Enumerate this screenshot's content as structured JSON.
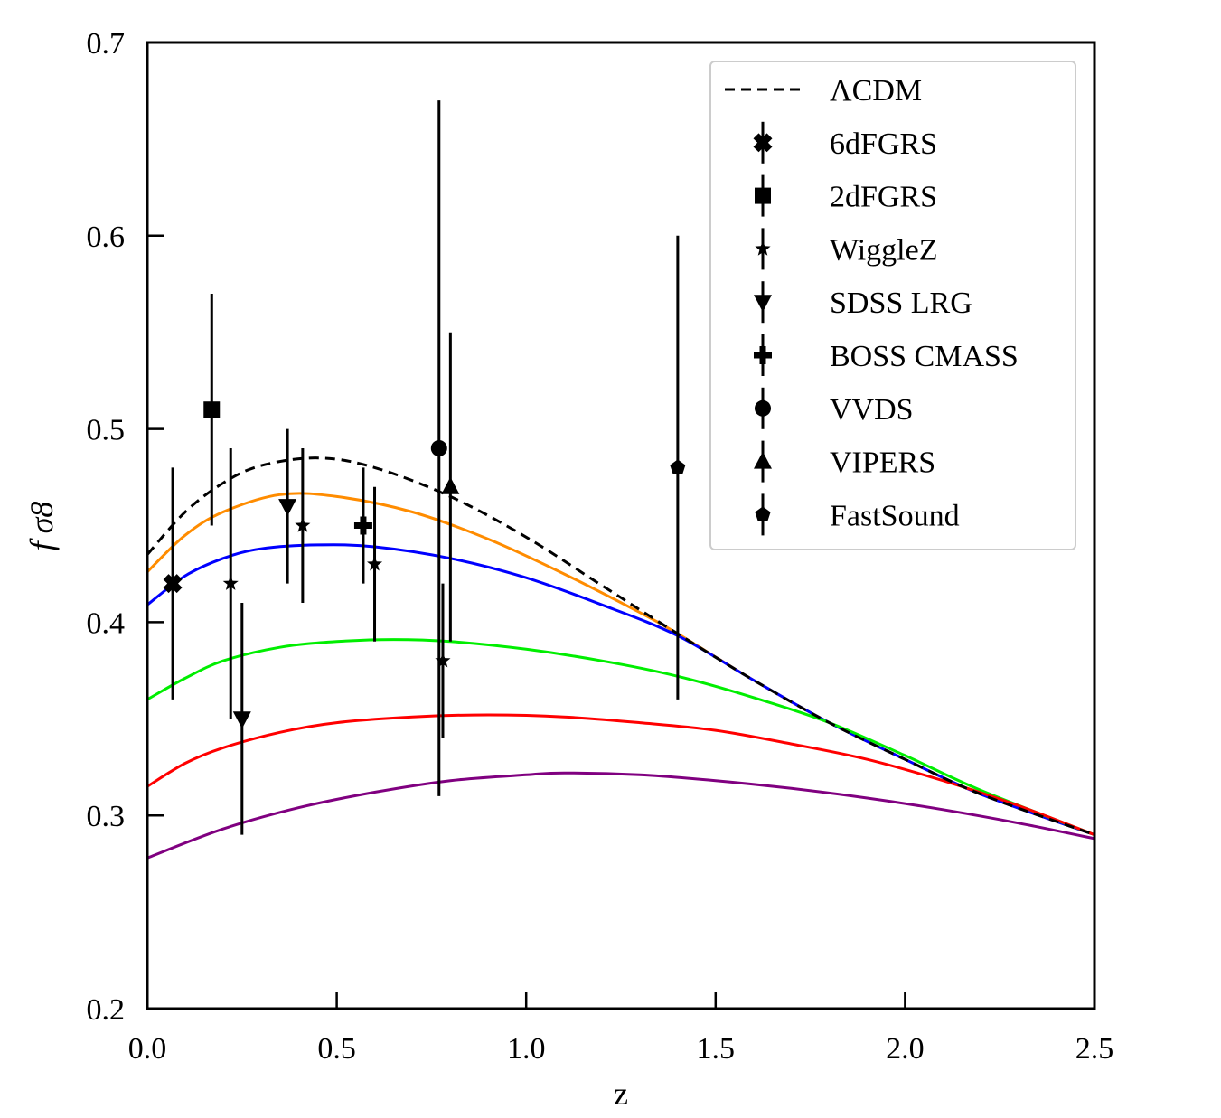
{
  "chart_data": {
    "type": "line",
    "xlabel": "z",
    "ylabel": "f σ8",
    "xlim": [
      0.0,
      2.5
    ],
    "ylim": [
      0.2,
      0.7
    ],
    "grid": false,
    "legend_position": "top-right",
    "xticks": [
      "0.0",
      "0.5",
      "1.0",
      "1.5",
      "2.0",
      "2.5"
    ],
    "yticks": [
      "0.2",
      "0.3",
      "0.4",
      "0.5",
      "0.6",
      "0.7"
    ],
    "model_series": [
      {
        "name": "ΛCDM",
        "color": "#000000",
        "dashed": true,
        "x": [
          0.0,
          0.1,
          0.2,
          0.3,
          0.45,
          0.6,
          0.8,
          1.0,
          1.2,
          1.4,
          1.6,
          1.8,
          2.0,
          2.2,
          2.5
        ],
        "y": [
          0.435,
          0.457,
          0.472,
          0.481,
          0.485,
          0.48,
          0.465,
          0.444,
          0.419,
          0.394,
          0.37,
          0.348,
          0.329,
          0.311,
          0.29
        ]
      },
      {
        "color": "#ff8c00",
        "dashed": false,
        "x": [
          0.0,
          0.1,
          0.2,
          0.35,
          0.5,
          0.7,
          0.9,
          1.1,
          1.3,
          1.4,
          1.6,
          1.8,
          2.0,
          2.2,
          2.5
        ],
        "y": [
          0.426,
          0.445,
          0.457,
          0.466,
          0.465,
          0.457,
          0.443,
          0.425,
          0.405,
          0.394,
          0.37,
          0.348,
          0.329,
          0.311,
          0.29
        ]
      },
      {
        "color": "#0000ff",
        "dashed": false,
        "x": [
          0.0,
          0.1,
          0.2,
          0.3,
          0.45,
          0.6,
          0.8,
          1.0,
          1.2,
          1.4,
          1.6,
          1.8,
          2.0,
          2.2,
          2.5
        ],
        "y": [
          0.409,
          0.424,
          0.433,
          0.438,
          0.44,
          0.439,
          0.433,
          0.423,
          0.409,
          0.393,
          0.37,
          0.348,
          0.329,
          0.311,
          0.29
        ]
      },
      {
        "color": "#00ee00",
        "dashed": false,
        "x": [
          0.0,
          0.1,
          0.2,
          0.35,
          0.5,
          0.65,
          0.8,
          1.0,
          1.2,
          1.4,
          1.6,
          1.8,
          2.0,
          2.2,
          2.5
        ],
        "y": [
          0.36,
          0.371,
          0.38,
          0.387,
          0.39,
          0.391,
          0.39,
          0.386,
          0.38,
          0.372,
          0.361,
          0.348,
          0.331,
          0.313,
          0.29
        ]
      },
      {
        "color": "#ff0000",
        "dashed": false,
        "x": [
          0.0,
          0.1,
          0.2,
          0.35,
          0.5,
          0.7,
          0.9,
          1.1,
          1.3,
          1.5,
          1.7,
          1.9,
          2.1,
          2.3,
          2.5
        ],
        "y": [
          0.315,
          0.327,
          0.335,
          0.343,
          0.348,
          0.351,
          0.352,
          0.351,
          0.348,
          0.344,
          0.337,
          0.329,
          0.318,
          0.305,
          0.29
        ]
      },
      {
        "color": "#800080",
        "dashed": false,
        "x": [
          0.0,
          0.2,
          0.4,
          0.6,
          0.8,
          1.0,
          1.1,
          1.3,
          1.5,
          1.7,
          1.9,
          2.1,
          2.3,
          2.5
        ],
        "y": [
          0.278,
          0.293,
          0.304,
          0.312,
          0.318,
          0.321,
          0.322,
          0.321,
          0.318,
          0.314,
          0.309,
          0.303,
          0.296,
          0.288
        ]
      }
    ],
    "data_series": [
      {
        "name": "6dFGRS",
        "marker": "x",
        "points": [
          {
            "x": 0.067,
            "y": 0.42,
            "err": 0.06
          }
        ]
      },
      {
        "name": "2dFGRS",
        "marker": "square",
        "points": [
          {
            "x": 0.17,
            "y": 0.51,
            "err": 0.06
          }
        ]
      },
      {
        "name": "WiggleZ",
        "marker": "star",
        "points": [
          {
            "x": 0.22,
            "y": 0.42,
            "err": 0.07
          },
          {
            "x": 0.41,
            "y": 0.45,
            "err": 0.04
          },
          {
            "x": 0.6,
            "y": 0.43,
            "err": 0.04
          },
          {
            "x": 0.78,
            "y": 0.38,
            "err": 0.04
          }
        ]
      },
      {
        "name": "SDSS LRG",
        "marker": "triangle-down",
        "points": [
          {
            "x": 0.25,
            "y": 0.35,
            "err": 0.06
          },
          {
            "x": 0.37,
            "y": 0.46,
            "err": 0.04
          }
        ]
      },
      {
        "name": "BOSS CMASS",
        "marker": "plus",
        "points": [
          {
            "x": 0.57,
            "y": 0.45,
            "err": 0.03
          }
        ]
      },
      {
        "name": "VVDS",
        "marker": "circle",
        "points": [
          {
            "x": 0.77,
            "y": 0.49,
            "err": 0.18
          }
        ]
      },
      {
        "name": "VIPERS",
        "marker": "triangle-up",
        "points": [
          {
            "x": 0.8,
            "y": 0.47,
            "err": 0.08
          }
        ]
      },
      {
        "name": "FastSound",
        "marker": "pentagon",
        "points": [
          {
            "x": 1.4,
            "y": 0.48,
            "err": 0.12
          }
        ]
      }
    ]
  }
}
